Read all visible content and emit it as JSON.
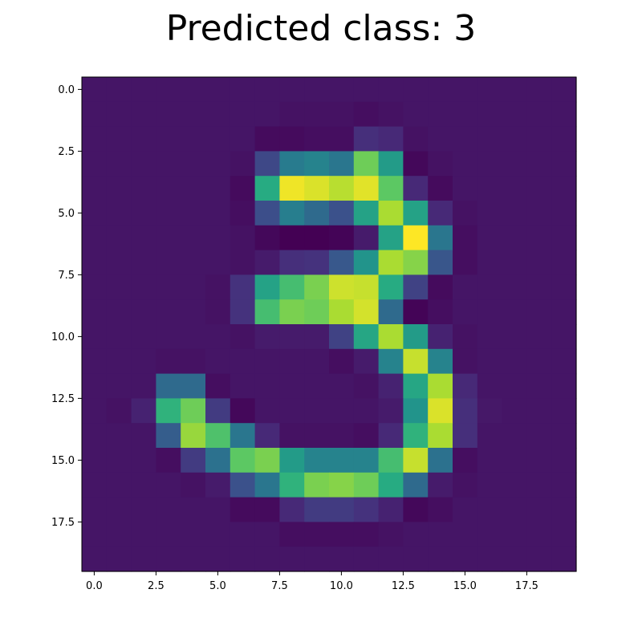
{
  "title": "Predicted class: 3",
  "chart_data": {
    "type": "heatmap",
    "title": "Predicted class: 3",
    "xlabel": "",
    "ylabel": "",
    "colormap": "viridis",
    "grid": false,
    "xlim": [
      -0.5,
      19.5
    ],
    "ylim": [
      19.5,
      -0.5
    ],
    "x_ticks": [
      0.0,
      2.5,
      5.0,
      7.5,
      10.0,
      12.5,
      15.0,
      17.5
    ],
    "x_tick_labels": [
      "0.0",
      "2.5",
      "5.0",
      "7.5",
      "10.0",
      "12.5",
      "15.0",
      "17.5"
    ],
    "y_ticks": [
      0.0,
      2.5,
      5.0,
      7.5,
      10.0,
      12.5,
      15.0,
      17.5
    ],
    "y_tick_labels": [
      "0.0",
      "2.5",
      "5.0",
      "7.5",
      "10.0",
      "12.5",
      "15.0",
      "17.5"
    ],
    "value_range": [
      0,
      1
    ],
    "matrix": [
      [
        0.06,
        0.06,
        0.06,
        0.06,
        0.06,
        0.06,
        0.06,
        0.06,
        0.06,
        0.06,
        0.06,
        0.06,
        0.06,
        0.06,
        0.06,
        0.06,
        0.06,
        0.06,
        0.06,
        0.06
      ],
      [
        0.06,
        0.06,
        0.06,
        0.06,
        0.06,
        0.06,
        0.06,
        0.06,
        0.05,
        0.05,
        0.05,
        0.04,
        0.05,
        0.06,
        0.06,
        0.06,
        0.06,
        0.06,
        0.06,
        0.06
      ],
      [
        0.06,
        0.06,
        0.06,
        0.06,
        0.06,
        0.06,
        0.06,
        0.03,
        0.03,
        0.04,
        0.04,
        0.14,
        0.12,
        0.05,
        0.06,
        0.06,
        0.06,
        0.06,
        0.06,
        0.06
      ],
      [
        0.06,
        0.06,
        0.06,
        0.06,
        0.06,
        0.06,
        0.05,
        0.22,
        0.42,
        0.45,
        0.4,
        0.78,
        0.55,
        0.02,
        0.05,
        0.06,
        0.06,
        0.06,
        0.06,
        0.06
      ],
      [
        0.06,
        0.06,
        0.06,
        0.06,
        0.06,
        0.06,
        0.03,
        0.62,
        0.98,
        0.95,
        0.9,
        0.96,
        0.75,
        0.12,
        0.03,
        0.06,
        0.06,
        0.06,
        0.06,
        0.06
      ],
      [
        0.06,
        0.06,
        0.06,
        0.06,
        0.06,
        0.06,
        0.04,
        0.24,
        0.43,
        0.35,
        0.25,
        0.58,
        0.88,
        0.58,
        0.12,
        0.05,
        0.06,
        0.06,
        0.06,
        0.06
      ],
      [
        0.06,
        0.06,
        0.06,
        0.06,
        0.06,
        0.06,
        0.05,
        0.02,
        0.0,
        0.0,
        0.01,
        0.08,
        0.58,
        1.0,
        0.4,
        0.04,
        0.06,
        0.06,
        0.06,
        0.06
      ],
      [
        0.06,
        0.06,
        0.06,
        0.06,
        0.06,
        0.06,
        0.05,
        0.08,
        0.14,
        0.15,
        0.28,
        0.52,
        0.88,
        0.82,
        0.27,
        0.04,
        0.06,
        0.06,
        0.06,
        0.06
      ],
      [
        0.06,
        0.06,
        0.06,
        0.06,
        0.06,
        0.05,
        0.15,
        0.58,
        0.7,
        0.8,
        0.93,
        0.92,
        0.62,
        0.2,
        0.03,
        0.06,
        0.06,
        0.06,
        0.06,
        0.06
      ],
      [
        0.06,
        0.06,
        0.06,
        0.06,
        0.06,
        0.05,
        0.15,
        0.7,
        0.8,
        0.78,
        0.88,
        0.94,
        0.35,
        0.01,
        0.04,
        0.06,
        0.06,
        0.06,
        0.06,
        0.06
      ],
      [
        0.06,
        0.06,
        0.06,
        0.06,
        0.06,
        0.06,
        0.05,
        0.08,
        0.08,
        0.08,
        0.2,
        0.6,
        0.88,
        0.55,
        0.1,
        0.05,
        0.06,
        0.06,
        0.06,
        0.06
      ],
      [
        0.06,
        0.06,
        0.06,
        0.05,
        0.05,
        0.06,
        0.06,
        0.06,
        0.06,
        0.06,
        0.04,
        0.08,
        0.45,
        0.92,
        0.45,
        0.05,
        0.06,
        0.06,
        0.06,
        0.06
      ],
      [
        0.06,
        0.06,
        0.06,
        0.35,
        0.35,
        0.04,
        0.06,
        0.06,
        0.06,
        0.06,
        0.06,
        0.05,
        0.1,
        0.6,
        0.88,
        0.12,
        0.06,
        0.06,
        0.06,
        0.06
      ],
      [
        0.06,
        0.05,
        0.1,
        0.65,
        0.78,
        0.18,
        0.02,
        0.06,
        0.06,
        0.06,
        0.06,
        0.06,
        0.08,
        0.52,
        0.95,
        0.14,
        0.07,
        0.06,
        0.06,
        0.06
      ],
      [
        0.06,
        0.06,
        0.06,
        0.3,
        0.85,
        0.72,
        0.4,
        0.12,
        0.05,
        0.05,
        0.05,
        0.04,
        0.12,
        0.65,
        0.88,
        0.14,
        0.06,
        0.06,
        0.06,
        0.06
      ],
      [
        0.06,
        0.06,
        0.06,
        0.04,
        0.18,
        0.38,
        0.75,
        0.8,
        0.55,
        0.45,
        0.45,
        0.45,
        0.7,
        0.92,
        0.38,
        0.04,
        0.06,
        0.06,
        0.06,
        0.06
      ],
      [
        0.06,
        0.06,
        0.06,
        0.06,
        0.05,
        0.08,
        0.25,
        0.4,
        0.65,
        0.8,
        0.82,
        0.78,
        0.62,
        0.35,
        0.08,
        0.05,
        0.06,
        0.06,
        0.06,
        0.06
      ],
      [
        0.06,
        0.06,
        0.06,
        0.06,
        0.06,
        0.06,
        0.03,
        0.03,
        0.12,
        0.18,
        0.18,
        0.15,
        0.1,
        0.02,
        0.04,
        0.06,
        0.06,
        0.06,
        0.06,
        0.06
      ],
      [
        0.06,
        0.06,
        0.06,
        0.06,
        0.06,
        0.06,
        0.06,
        0.06,
        0.04,
        0.04,
        0.04,
        0.04,
        0.05,
        0.06,
        0.06,
        0.06,
        0.06,
        0.06,
        0.06,
        0.06
      ],
      [
        0.06,
        0.06,
        0.06,
        0.06,
        0.06,
        0.06,
        0.06,
        0.06,
        0.06,
        0.06,
        0.06,
        0.06,
        0.06,
        0.06,
        0.06,
        0.06,
        0.06,
        0.06,
        0.06,
        0.06
      ]
    ]
  }
}
